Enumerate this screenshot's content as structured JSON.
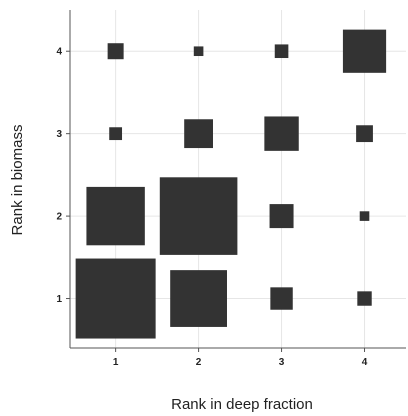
{
  "chart_data": {
    "type": "scatter",
    "xlabel": "Rank in deep fraction",
    "ylabel": "Rank in biomass",
    "xlim": [
      0.45,
      4.5
    ],
    "ylim": [
      0.4,
      4.5
    ],
    "x_ticks": [
      1,
      2,
      3,
      4
    ],
    "y_ticks": [
      1,
      2,
      3,
      4
    ],
    "grid": true,
    "marker": "square",
    "marker_color": "#333333",
    "points": [
      {
        "x": 1,
        "y": 4,
        "size": 0.2
      },
      {
        "x": 2,
        "y": 4,
        "size": 0.12
      },
      {
        "x": 3,
        "y": 4,
        "size": 0.17
      },
      {
        "x": 4,
        "y": 4,
        "size": 0.54
      },
      {
        "x": 1,
        "y": 3,
        "size": 0.16
      },
      {
        "x": 2,
        "y": 3,
        "size": 0.36
      },
      {
        "x": 3,
        "y": 3,
        "size": 0.43
      },
      {
        "x": 4,
        "y": 3,
        "size": 0.21
      },
      {
        "x": 1,
        "y": 2,
        "size": 0.73
      },
      {
        "x": 2,
        "y": 2,
        "size": 0.97
      },
      {
        "x": 3,
        "y": 2,
        "size": 0.3
      },
      {
        "x": 4,
        "y": 2,
        "size": 0.12
      },
      {
        "x": 1,
        "y": 1,
        "size": 1.0
      },
      {
        "x": 2,
        "y": 1,
        "size": 0.71
      },
      {
        "x": 3,
        "y": 1,
        "size": 0.28
      },
      {
        "x": 4,
        "y": 1,
        "size": 0.18
      }
    ]
  }
}
